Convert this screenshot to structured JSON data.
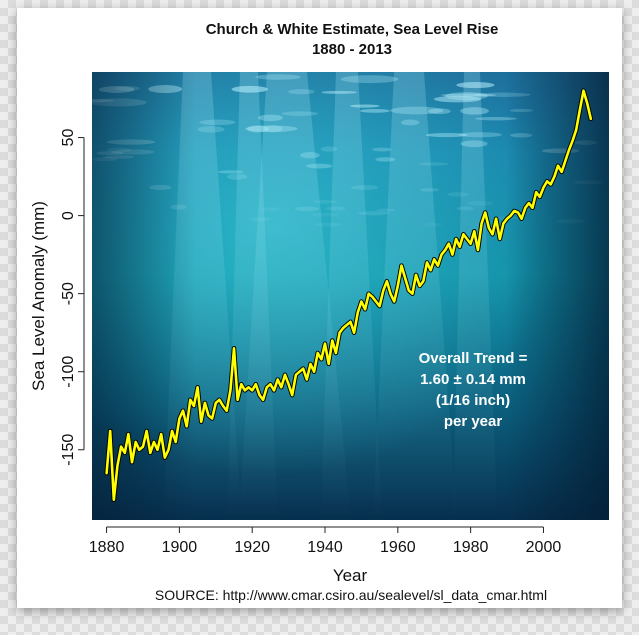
{
  "chart_data": {
    "type": "line",
    "title": "Church & White Estimate, Sea Level Rise",
    "subtitle": "1880 - 2013",
    "xlabel": "Year",
    "ylabel": "Sea Level Anomaly (mm)",
    "xlim": [
      1876,
      2018
    ],
    "ylim": [
      -195,
      92
    ],
    "x_ticks": [
      1880,
      1900,
      1920,
      1940,
      1960,
      1980,
      2000
    ],
    "y_ticks": [
      50,
      0,
      -50,
      -100,
      -150
    ],
    "grid": false,
    "legend": "none",
    "colors": {
      "line": "#ffff00",
      "line_outline": "#000000"
    },
    "annotation": [
      "Overall Trend =",
      "1.60 ± 0.14 mm",
      "(1/16 inch)",
      "per year"
    ],
    "source": "SOURCE: http://www.cmar.csiro.au/sealevel/sl_data_cmar.html",
    "series": [
      {
        "x": [
          1880,
          1881,
          1882,
          1883,
          1884,
          1885,
          1886,
          1887,
          1888,
          1889,
          1890,
          1891,
          1892,
          1893,
          1894,
          1895,
          1896,
          1897,
          1898,
          1899,
          1900,
          1901,
          1902,
          1903,
          1904,
          1905,
          1906,
          1907,
          1908,
          1909,
          1910,
          1911,
          1912,
          1913,
          1914,
          1915,
          1916,
          1917,
          1918,
          1919,
          1920,
          1921,
          1922,
          1923,
          1924,
          1925,
          1926,
          1927,
          1928,
          1929,
          1930,
          1931,
          1932,
          1933,
          1934,
          1935,
          1936,
          1937,
          1938,
          1939,
          1940,
          1941,
          1942,
          1943,
          1944,
          1945,
          1946,
          1947,
          1948,
          1949,
          1950,
          1951,
          1952,
          1953,
          1954,
          1955,
          1956,
          1957,
          1958,
          1959,
          1960,
          1961,
          1962,
          1963,
          1964,
          1965,
          1966,
          1967,
          1968,
          1969,
          1970,
          1971,
          1972,
          1973,
          1974,
          1975,
          1976,
          1977,
          1978,
          1979,
          1980,
          1981,
          1982,
          1983,
          1984,
          1985,
          1986,
          1987,
          1988,
          1989,
          1990,
          1991,
          1992,
          1993,
          1994,
          1995,
          1996,
          1997,
          1998,
          1999,
          2000,
          2001,
          2002,
          2003,
          2004,
          2005,
          2006,
          2007,
          2008,
          2009,
          2010,
          2011,
          2012,
          2013
        ],
        "values": [
          -165,
          -138,
          -182,
          -160,
          -148,
          -152,
          -140,
          -158,
          -145,
          -150,
          -148,
          -138,
          -152,
          -145,
          -150,
          -140,
          -155,
          -150,
          -138,
          -145,
          -130,
          -125,
          -135,
          -118,
          -122,
          -110,
          -132,
          -120,
          -128,
          -130,
          -120,
          -118,
          -122,
          -125,
          -112,
          -85,
          -118,
          -108,
          -112,
          -110,
          -112,
          -108,
          -115,
          -118,
          -110,
          -108,
          -112,
          -105,
          -110,
          -102,
          -108,
          -115,
          -102,
          -100,
          -98,
          -105,
          -95,
          -100,
          -88,
          -92,
          -82,
          -95,
          -80,
          -88,
          -75,
          -72,
          -70,
          -68,
          -75,
          -62,
          -55,
          -60,
          -50,
          -52,
          -55,
          -58,
          -48,
          -42,
          -50,
          -55,
          -45,
          -32,
          -40,
          -48,
          -50,
          -38,
          -45,
          -42,
          -30,
          -35,
          -28,
          -32,
          -25,
          -22,
          -18,
          -25,
          -15,
          -20,
          -12,
          -15,
          -18,
          -10,
          -22,
          -5,
          2,
          -8,
          -12,
          -2,
          -15,
          -5,
          -2,
          0,
          3,
          2,
          -2,
          5,
          8,
          5,
          15,
          12,
          18,
          22,
          20,
          25,
          32,
          28,
          35,
          42,
          48,
          55,
          68,
          80,
          72,
          62
        ]
      }
    ]
  }
}
